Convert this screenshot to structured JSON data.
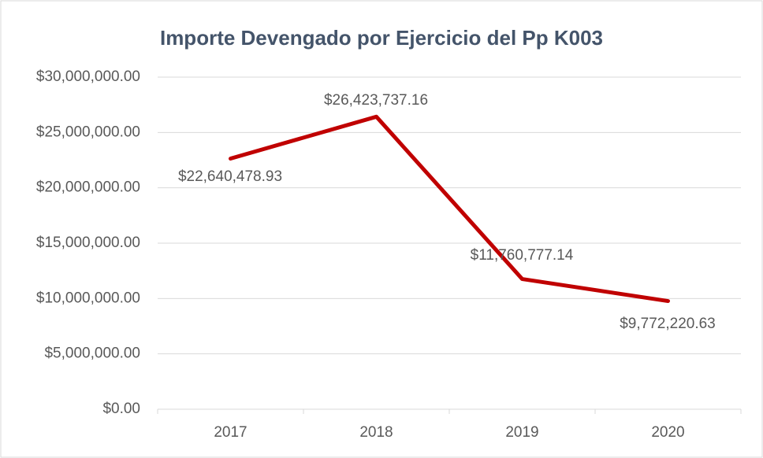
{
  "chart_data": {
    "type": "line",
    "title": "Importe Devengado por Ejercicio del Pp K003",
    "categories": [
      "2017",
      "2018",
      "2019",
      "2020"
    ],
    "series": [
      {
        "name": "Importe Devengado",
        "color": "#c00000",
        "values": [
          22640478.93,
          26423737.16,
          11760777.14,
          9772220.63
        ],
        "value_labels": [
          "$22,640,478.93",
          "$26,423,737.16",
          "$11,760,777.14",
          "$9,772,220.63"
        ]
      }
    ],
    "ylim": [
      0,
      30000000
    ],
    "yticks": [
      {
        "value": 0,
        "label": "$0.00"
      },
      {
        "value": 5000000,
        "label": "$5,000,000.00"
      },
      {
        "value": 10000000,
        "label": "$10,000,000.00"
      },
      {
        "value": 15000000,
        "label": "$15,000,000.00"
      },
      {
        "value": 20000000,
        "label": "$20,000,000.00"
      },
      {
        "value": 25000000,
        "label": "$25,000,000.00"
      },
      {
        "value": 30000000,
        "label": "$30,000,000.00"
      }
    ],
    "grid": true
  }
}
